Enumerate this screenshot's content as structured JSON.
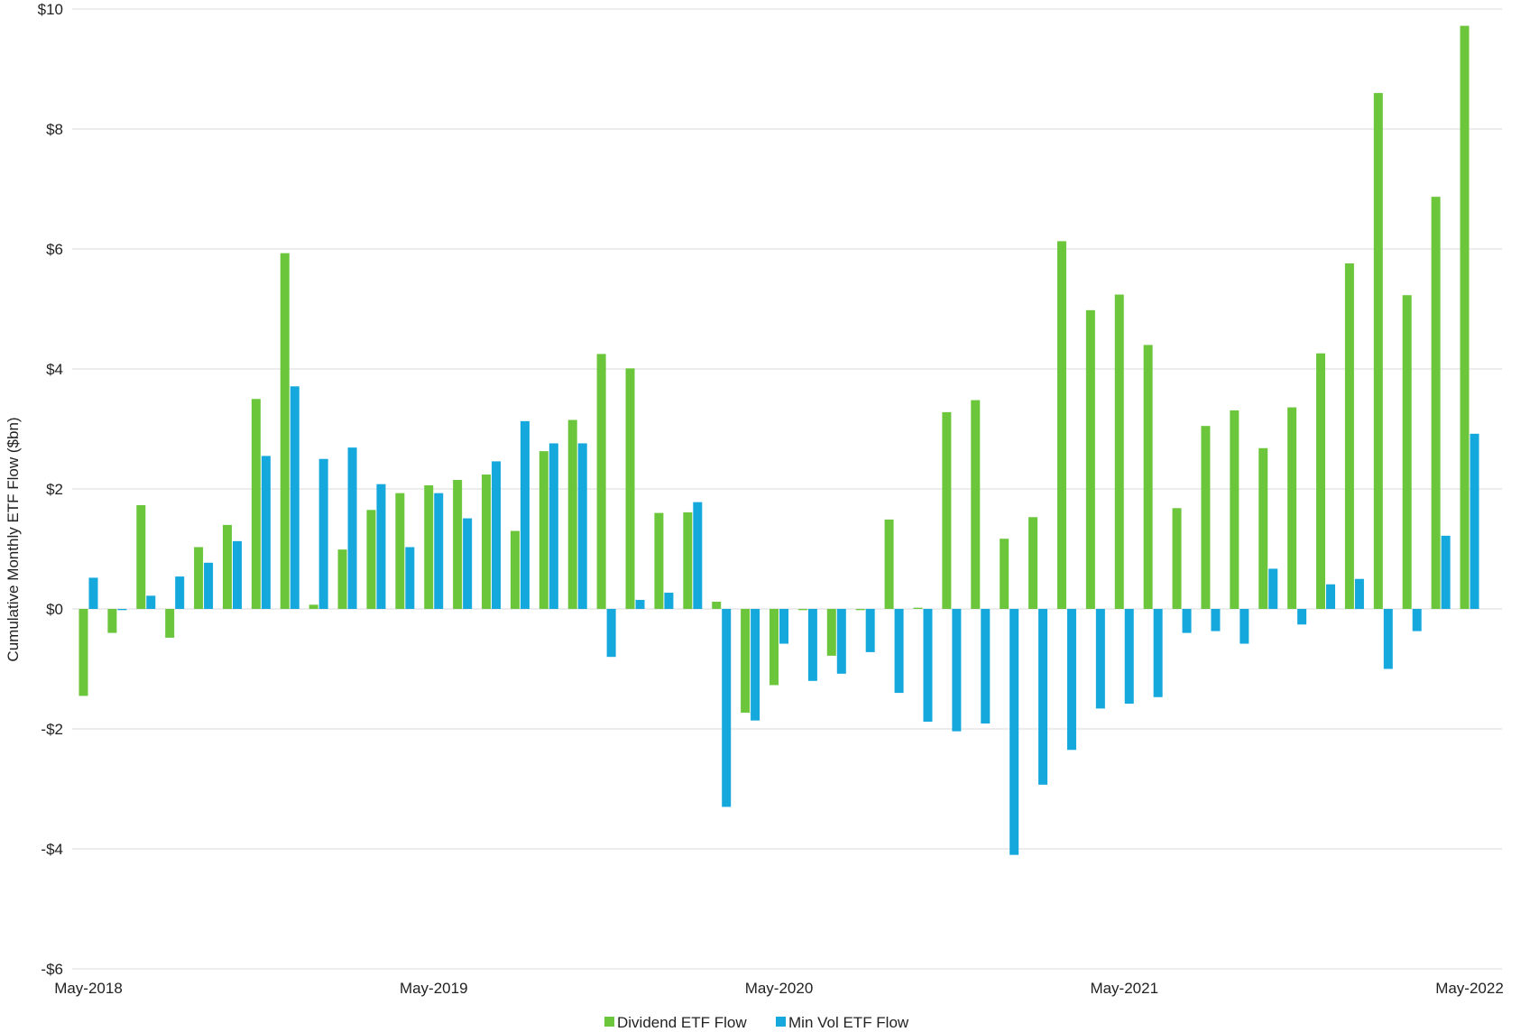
{
  "chart_data": {
    "type": "bar",
    "ylabel": "Cumulative Monthly ETF Flow ($bn)",
    "ylim": [
      -6,
      10
    ],
    "yticks": [
      {
        "value": 10,
        "label": "$10"
      },
      {
        "value": 8,
        "label": "$8"
      },
      {
        "value": 6,
        "label": "$6"
      },
      {
        "value": 4,
        "label": "$4"
      },
      {
        "value": 2,
        "label": "$2"
      },
      {
        "value": 0,
        "label": "$0"
      },
      {
        "value": -2,
        "label": "-$2"
      },
      {
        "value": -4,
        "label": "-$4"
      },
      {
        "value": -6,
        "label": "-$6"
      }
    ],
    "xticks": [
      {
        "index": 0,
        "label": "May-2018"
      },
      {
        "index": 12,
        "label": "May-2019"
      },
      {
        "index": 24,
        "label": "May-2020"
      },
      {
        "index": 36,
        "label": "May-2021"
      },
      {
        "index": 48,
        "label": "May-2022"
      }
    ],
    "grid": true,
    "legend_position": "bottom",
    "categories": [
      "2018-05",
      "2018-06",
      "2018-07",
      "2018-08",
      "2018-09",
      "2018-10",
      "2018-11",
      "2018-12",
      "2019-01",
      "2019-02",
      "2019-03",
      "2019-04",
      "2019-05",
      "2019-06",
      "2019-07",
      "2019-08",
      "2019-09",
      "2019-10",
      "2019-11",
      "2019-12",
      "2020-01",
      "2020-02",
      "2020-03",
      "2020-04",
      "2020-05",
      "2020-06",
      "2020-07",
      "2020-08",
      "2020-09",
      "2020-10",
      "2020-11",
      "2020-12",
      "2021-01",
      "2021-02",
      "2021-03",
      "2021-04",
      "2021-05",
      "2021-06",
      "2021-07",
      "2021-08",
      "2021-09",
      "2021-10",
      "2021-11",
      "2021-12",
      "2022-01",
      "2022-02",
      "2022-03",
      "2022-04",
      "2022-05"
    ],
    "series": [
      {
        "name": "Dividend ETF Flow",
        "color": "#6cc63c",
        "values": [
          -1.45,
          -0.4,
          1.73,
          -0.48,
          1.03,
          1.4,
          3.5,
          5.93,
          0.07,
          0.99,
          1.65,
          1.93,
          2.06,
          2.15,
          2.24,
          1.3,
          2.63,
          3.15,
          4.25,
          4.01,
          1.6,
          1.61,
          0.12,
          -1.73,
          -1.27,
          -0.02,
          -0.78,
          -0.02,
          1.49,
          0.02,
          3.28,
          3.48,
          1.17,
          1.53,
          6.13,
          4.98,
          5.24,
          4.4,
          1.68,
          3.05,
          3.31,
          2.68,
          3.36,
          4.26,
          5.76,
          8.6,
          5.23,
          6.87,
          9.72
        ]
      },
      {
        "name": "Min Vol ETF Flow",
        "color": "#14a8dc",
        "values": [
          0.52,
          -0.02,
          0.22,
          0.54,
          0.77,
          1.13,
          2.55,
          3.71,
          2.5,
          2.69,
          2.08,
          1.03,
          1.93,
          1.51,
          2.46,
          3.13,
          2.76,
          2.76,
          -0.8,
          0.15,
          0.27,
          1.78,
          -3.3,
          -1.86,
          -0.58,
          -1.2,
          -1.08,
          -0.72,
          -1.4,
          -1.88,
          -2.04,
          -1.91,
          -4.1,
          -2.93,
          -2.35,
          -1.66,
          -1.58,
          -1.47,
          -0.4,
          -0.37,
          -0.58,
          0.67,
          -0.26,
          0.41,
          0.5,
          -1.0,
          -0.37,
          1.22,
          2.92
        ]
      }
    ]
  }
}
